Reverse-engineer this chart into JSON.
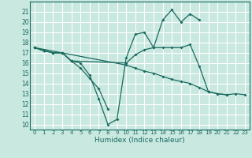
{
  "xlabel": "Humidex (Indice chaleur)",
  "xlim": [
    -0.5,
    23.5
  ],
  "ylim": [
    9.5,
    22
  ],
  "yticks": [
    10,
    11,
    12,
    13,
    14,
    15,
    16,
    17,
    18,
    19,
    20,
    21
  ],
  "xticks": [
    0,
    1,
    2,
    3,
    4,
    5,
    6,
    7,
    8,
    9,
    10,
    11,
    12,
    13,
    14,
    15,
    16,
    17,
    18,
    19,
    20,
    21,
    22,
    23
  ],
  "bg_color": "#c8e8e0",
  "grid_color": "#ffffff",
  "line_color": "#1a6b60",
  "lines": [
    {
      "x": [
        0,
        1,
        2,
        3,
        4,
        5,
        6,
        7,
        8,
        9,
        10,
        11,
        12,
        13,
        14,
        15,
        16,
        17,
        18
      ],
      "y": [
        17.5,
        17.2,
        17.0,
        17.0,
        16.2,
        16.0,
        14.8,
        12.5,
        10.0,
        10.5,
        16.5,
        18.8,
        19.0,
        17.5,
        20.2,
        21.2,
        20.0,
        20.8,
        20.2
      ]
    },
    {
      "x": [
        0,
        1,
        2,
        3,
        4,
        10,
        11,
        12,
        13,
        14,
        15,
        16,
        17,
        18,
        19,
        20,
        21
      ],
      "y": [
        17.5,
        17.2,
        17.0,
        17.0,
        16.2,
        16.0,
        16.8,
        17.3,
        17.5,
        17.5,
        17.5,
        17.5,
        17.8,
        15.7,
        13.2,
        13.0,
        12.9
      ]
    },
    {
      "x": [
        0,
        1,
        2,
        3,
        4,
        5,
        6,
        7,
        8
      ],
      "y": [
        17.5,
        17.2,
        17.0,
        17.0,
        16.2,
        15.5,
        14.5,
        13.5,
        11.5
      ]
    },
    {
      "x": [
        0,
        10,
        11,
        12,
        13,
        14,
        15,
        16,
        17,
        18,
        19,
        20,
        21,
        22,
        23
      ],
      "y": [
        17.5,
        15.8,
        15.5,
        15.2,
        15.0,
        14.7,
        14.4,
        14.2,
        14.0,
        13.6,
        13.2,
        13.0,
        12.9,
        13.0,
        12.9
      ]
    }
  ]
}
